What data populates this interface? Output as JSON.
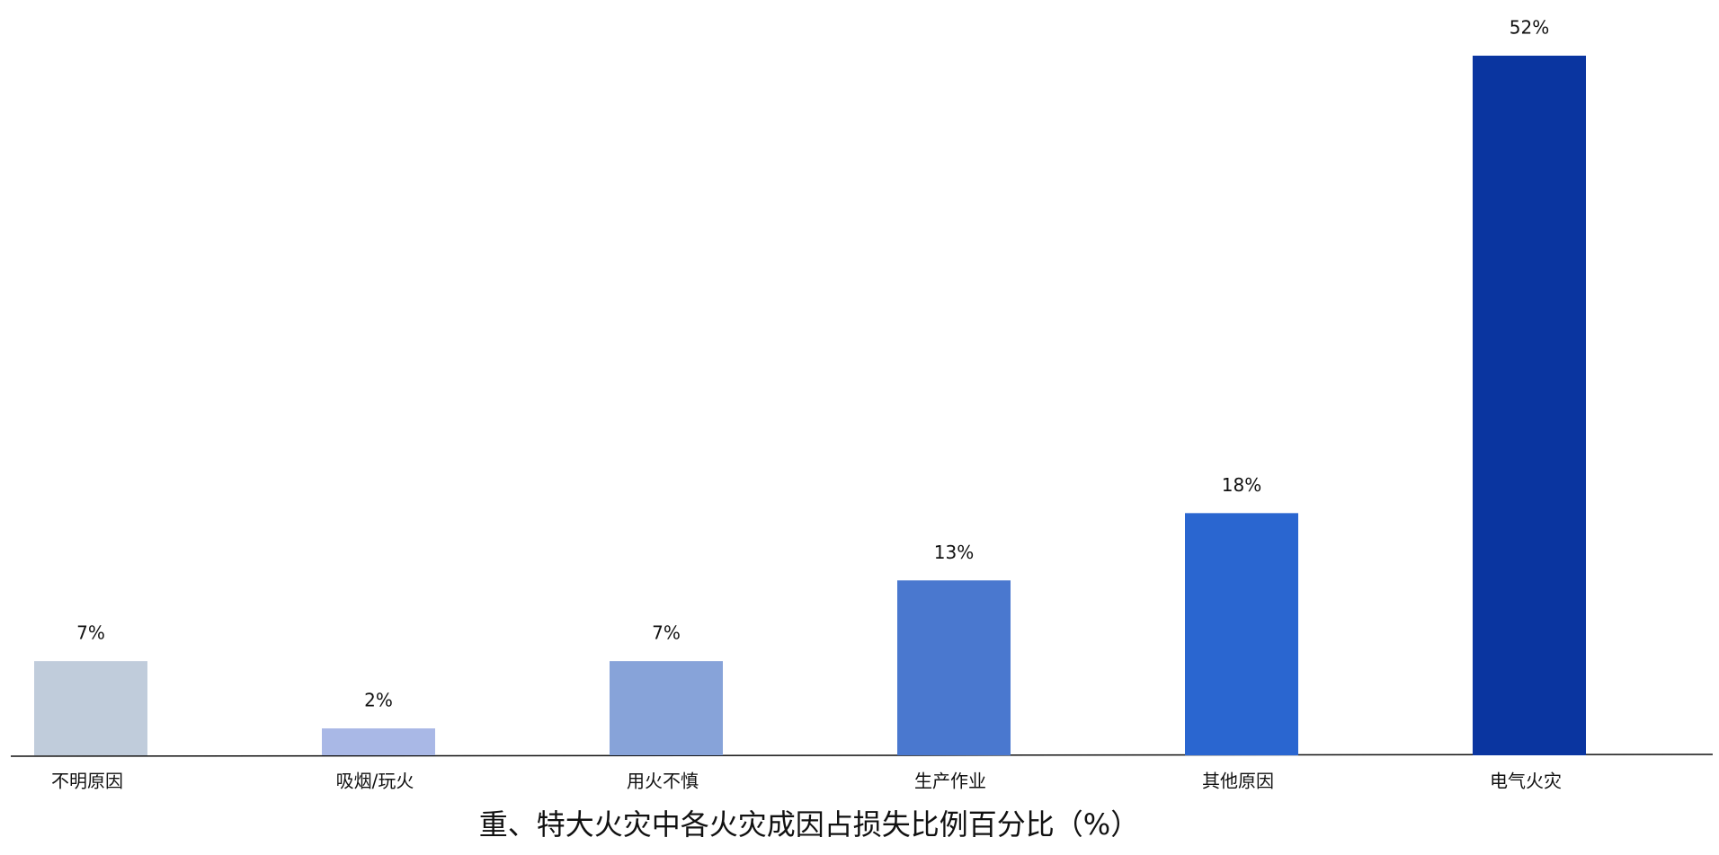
{
  "chart_data": {
    "type": "bar",
    "title": "重、特大火灾中各火灾成因占损失比例百分比（%）",
    "categories": [
      "不明原因",
      "吸烟/玩火",
      "用火不慎",
      "生产作业",
      "其他原因",
      "电气火灾"
    ],
    "values": [
      7,
      2,
      7,
      13,
      18,
      52
    ],
    "value_labels": [
      "7%",
      "2%",
      "7%",
      "13%",
      "18%",
      "52%"
    ],
    "colors": [
      "#c0ccdb",
      "#a9b8e6",
      "#87a3d9",
      "#4a78cf",
      "#2a66d0",
      "#0a35a0"
    ]
  }
}
